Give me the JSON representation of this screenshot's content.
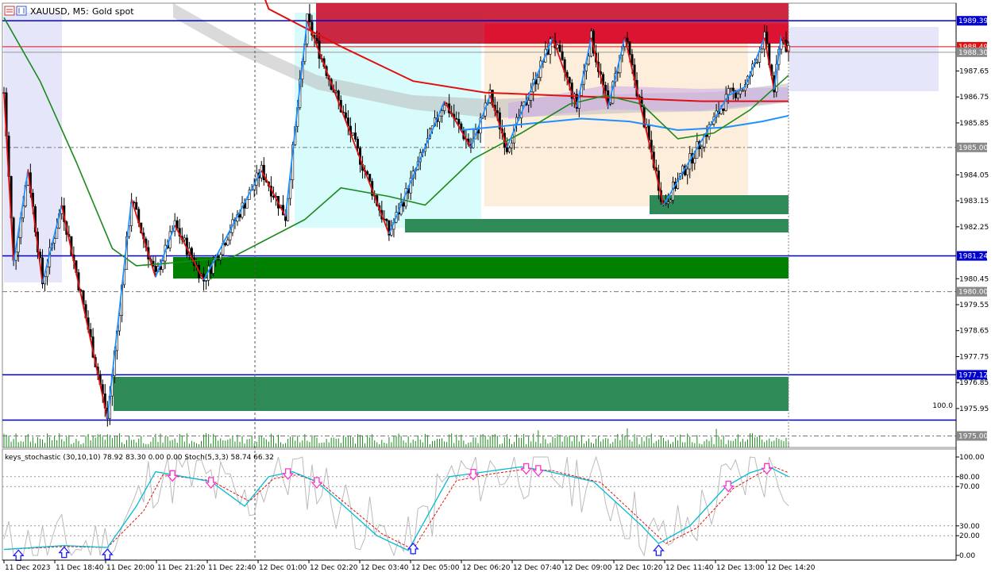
{
  "header": {
    "symbol": "XAUUSD, M5:",
    "description": "Gold spot"
  },
  "colors": {
    "background": "#ffffff",
    "bull_candle": "#000000",
    "bear_candle": "#000000",
    "ma_red": "#e01010",
    "ma_green": "#1a8a1a",
    "ma_blue": "#1e90ff",
    "zigzag_red": "#e01010",
    "zigzag_blue": "#1e90ff",
    "supply_zone": "#c8102e",
    "demand_zone_dark": "#008000",
    "demand_zone_teal": "#2e8b57",
    "session_cyan": "#d8fbfb",
    "session_peach": "#fdeedb",
    "session_lavender": "#e6e6fa",
    "hline_blue": "#0000cd",
    "stoch_main": "#00bcd4",
    "stoch_signal": "#e01010",
    "stoch_raw": "#bbbbbb",
    "arrow_up": "#1a1aff",
    "arrow_down": "#ff33cc"
  },
  "chart_data": [
    {
      "type": "candlestick",
      "symbol": "XAUUSD",
      "timeframe": "M5",
      "description": "Gold spot",
      "y_axis_ticks": [
        "1987.65",
        "1986.75",
        "1985.85",
        "1984.05",
        "1983.15",
        "1982.25",
        "1980.45",
        "1979.55",
        "1978.65",
        "1977.75",
        "1976.85",
        "1975.95"
      ],
      "ylim": [
        1974.6,
        1990.0
      ],
      "x_axis_ticks": [
        "11 Dec 2023",
        "11 Dec 18:40",
        "11 Dec 20:00",
        "11 Dec 21:20",
        "11 Dec 22:40",
        "12 Dec 01:00",
        "12 Dec 02:20",
        "12 Dec 03:40",
        "12 Dec 05:00",
        "12 Dec 06:20",
        "12 Dec 07:40",
        "12 Dec 09:00",
        "12 Dec 10:20",
        "12 Dec 11:40",
        "12 Dec 13:00",
        "12 Dec 14:20"
      ],
      "price_tags": [
        {
          "value": "1989.39",
          "style": "blue"
        },
        {
          "value": "1988.49",
          "style": "red"
        },
        {
          "value": "1988.30",
          "style": "grey"
        },
        {
          "value": "1985.00",
          "style": "grey"
        },
        {
          "value": "1981.24",
          "style": "blue"
        },
        {
          "value": "1980.00",
          "style": "grey"
        },
        {
          "value": "1977.12",
          "style": "blue"
        },
        {
          "value": "1975.00",
          "style": "grey"
        }
      ],
      "level_label": "100.0",
      "horizontal_levels": [
        1989.39,
        1988.49,
        1988.3,
        1985.0,
        1981.24,
        1980.0,
        1977.12,
        1975.0
      ],
      "zigzag_points": [
        {
          "x": 0,
          "y": 1986.9
        },
        {
          "x": 4,
          "y": 1981.0
        },
        {
          "x": 10,
          "y": 1984.2
        },
        {
          "x": 16,
          "y": 1980.3
        },
        {
          "x": 24,
          "y": 1983.0
        },
        {
          "x": 43,
          "y": 1975.6
        },
        {
          "x": 53,
          "y": 1983.2
        },
        {
          "x": 63,
          "y": 1980.5
        },
        {
          "x": 71,
          "y": 1982.3
        },
        {
          "x": 83,
          "y": 1980.4
        },
        {
          "x": 107,
          "y": 1984.2
        },
        {
          "x": 117,
          "y": 1982.6
        },
        {
          "x": 126,
          "y": 1989.4
        },
        {
          "x": 160,
          "y": 1982.0
        },
        {
          "x": 183,
          "y": 1986.6
        },
        {
          "x": 194,
          "y": 1985.0
        },
        {
          "x": 202,
          "y": 1986.8
        },
        {
          "x": 209,
          "y": 1985.0
        },
        {
          "x": 228,
          "y": 1988.8
        },
        {
          "x": 238,
          "y": 1986.4
        },
        {
          "x": 244,
          "y": 1988.8
        },
        {
          "x": 251,
          "y": 1986.4
        },
        {
          "x": 258,
          "y": 1988.8
        },
        {
          "x": 274,
          "y": 1983.0
        },
        {
          "x": 301,
          "y": 1986.8
        },
        {
          "x": 308,
          "y": 1987.1
        },
        {
          "x": 316,
          "y": 1988.8
        },
        {
          "x": 320,
          "y": 1987.0
        },
        {
          "x": 323,
          "y": 1988.9
        },
        {
          "x": 326,
          "y": 1988.3
        }
      ],
      "ma_red": [
        {
          "x": 91,
          "y": 1994.0
        },
        {
          "x": 110,
          "y": 1989.8
        },
        {
          "x": 140,
          "y": 1988.5
        },
        {
          "x": 170,
          "y": 1987.3
        },
        {
          "x": 200,
          "y": 1986.9
        },
        {
          "x": 230,
          "y": 1986.8
        },
        {
          "x": 260,
          "y": 1986.7
        },
        {
          "x": 290,
          "y": 1986.6
        },
        {
          "x": 310,
          "y": 1986.6
        },
        {
          "x": 326,
          "y": 1986.6
        }
      ],
      "ma_blue": [
        {
          "x": 190,
          "y": 1985.6
        },
        {
          "x": 215,
          "y": 1985.8
        },
        {
          "x": 240,
          "y": 1986.0
        },
        {
          "x": 260,
          "y": 1985.9
        },
        {
          "x": 280,
          "y": 1985.6
        },
        {
          "x": 300,
          "y": 1985.7
        },
        {
          "x": 315,
          "y": 1985.9
        },
        {
          "x": 326,
          "y": 1986.1
        }
      ],
      "ma_green": [
        {
          "x": 0,
          "y": 1989.5
        },
        {
          "x": 15,
          "y": 1987.3
        },
        {
          "x": 30,
          "y": 1984.5
        },
        {
          "x": 45,
          "y": 1981.5
        },
        {
          "x": 55,
          "y": 1980.9
        },
        {
          "x": 70,
          "y": 1981.0
        },
        {
          "x": 95,
          "y": 1981.2
        },
        {
          "x": 125,
          "y": 1982.5
        },
        {
          "x": 140,
          "y": 1983.6
        },
        {
          "x": 160,
          "y": 1983.3
        },
        {
          "x": 175,
          "y": 1983.0
        },
        {
          "x": 195,
          "y": 1984.6
        },
        {
          "x": 215,
          "y": 1985.5
        },
        {
          "x": 235,
          "y": 1986.5
        },
        {
          "x": 250,
          "y": 1986.8
        },
        {
          "x": 265,
          "y": 1986.5
        },
        {
          "x": 280,
          "y": 1985.3
        },
        {
          "x": 295,
          "y": 1985.5
        },
        {
          "x": 310,
          "y": 1986.3
        },
        {
          "x": 326,
          "y": 1987.5
        }
      ],
      "total_bars": 327
    },
    {
      "type": "histogram",
      "name": "volume",
      "panel": "volume"
    },
    {
      "type": "line",
      "panel": "oscillator",
      "label": "keys_stochastic (30,10,10) 78.92 83.30 0.00 0.00  Stoch(5,3,3) 58.74 66.32",
      "y_axis_ticks": [
        "100.00",
        "80.00",
        "70.00",
        "30.00",
        "20.00",
        "0.00"
      ],
      "ylim": [
        0,
        100
      ],
      "levels": [
        80,
        70,
        30,
        20
      ],
      "main_line": [
        {
          "x": 0,
          "y": 6
        },
        {
          "x": 25,
          "y": 10
        },
        {
          "x": 43,
          "y": 8
        },
        {
          "x": 55,
          "y": 50
        },
        {
          "x": 63,
          "y": 85
        },
        {
          "x": 70,
          "y": 82
        },
        {
          "x": 86,
          "y": 75
        },
        {
          "x": 100,
          "y": 50
        },
        {
          "x": 110,
          "y": 80
        },
        {
          "x": 120,
          "y": 85
        },
        {
          "x": 130,
          "y": 75
        },
        {
          "x": 155,
          "y": 20
        },
        {
          "x": 168,
          "y": 5
        },
        {
          "x": 185,
          "y": 80
        },
        {
          "x": 200,
          "y": 85
        },
        {
          "x": 215,
          "y": 90
        },
        {
          "x": 225,
          "y": 86
        },
        {
          "x": 245,
          "y": 75
        },
        {
          "x": 265,
          "y": 30
        },
        {
          "x": 272,
          "y": 12
        },
        {
          "x": 285,
          "y": 30
        },
        {
          "x": 300,
          "y": 70
        },
        {
          "x": 310,
          "y": 84
        },
        {
          "x": 318,
          "y": 90
        },
        {
          "x": 326,
          "y": 80
        }
      ],
      "signal_line": [
        {
          "x": 0,
          "y": 6
        },
        {
          "x": 25,
          "y": 9
        },
        {
          "x": 43,
          "y": 8
        },
        {
          "x": 58,
          "y": 45
        },
        {
          "x": 66,
          "y": 82
        },
        {
          "x": 86,
          "y": 76
        },
        {
          "x": 102,
          "y": 55
        },
        {
          "x": 112,
          "y": 78
        },
        {
          "x": 122,
          "y": 82
        },
        {
          "x": 132,
          "y": 73
        },
        {
          "x": 157,
          "y": 22
        },
        {
          "x": 170,
          "y": 6
        },
        {
          "x": 188,
          "y": 76
        },
        {
          "x": 203,
          "y": 83
        },
        {
          "x": 218,
          "y": 88
        },
        {
          "x": 228,
          "y": 86
        },
        {
          "x": 248,
          "y": 74
        },
        {
          "x": 268,
          "y": 28
        },
        {
          "x": 275,
          "y": 12
        },
        {
          "x": 288,
          "y": 28
        },
        {
          "x": 303,
          "y": 68
        },
        {
          "x": 313,
          "y": 82
        },
        {
          "x": 320,
          "y": 90
        },
        {
          "x": 326,
          "y": 84
        }
      ],
      "arrows_up_at": [
        6,
        25,
        43,
        170,
        272
      ],
      "arrows_down_at": [
        70,
        86,
        118,
        130,
        195,
        217,
        222,
        301,
        317
      ]
    }
  ]
}
